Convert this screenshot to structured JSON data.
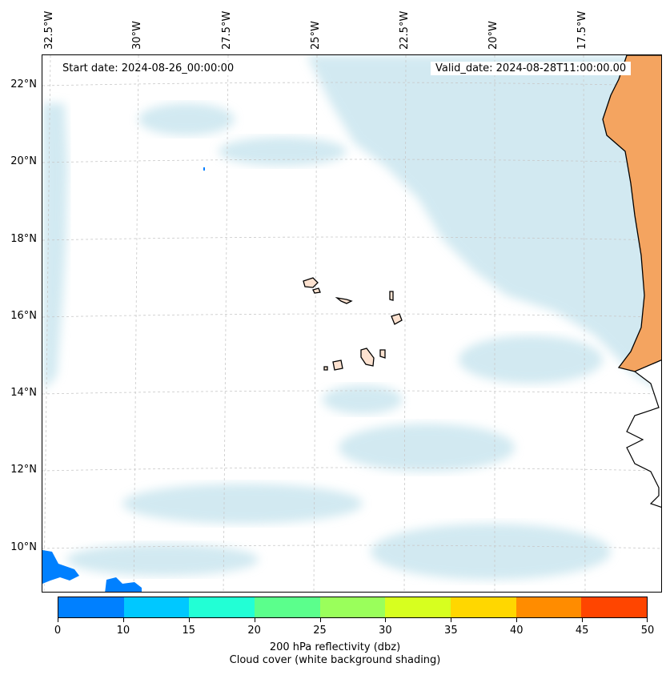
{
  "map": {
    "start_date": "Start date: 2024-08-26_00:00:00",
    "valid_date": "Valid_date: 2024-08-28T11:00:00.00",
    "lon_labels": [
      "32.5°W",
      "30°W",
      "27.5°W",
      "25°W",
      "22.5°W",
      "20°W",
      "17.5°W"
    ],
    "lat_labels": [
      "22°N",
      "20°N",
      "18°N",
      "16°N",
      "14°N",
      "12°N",
      "10°N"
    ],
    "land_color": "#f4a460",
    "cloud_color": "#add8e6",
    "reflectivity_color": "#0080ff"
  },
  "colorbar": {
    "colors": [
      "#0080ff",
      "#00c8ff",
      "#22ffd5",
      "#5bff8c",
      "#9aff5b",
      "#d7ff1f",
      "#ffd700",
      "#ff8c00",
      "#ff4500"
    ],
    "ticks": [
      "0",
      "10",
      "15",
      "20",
      "25",
      "30",
      "35",
      "40",
      "45",
      "50"
    ],
    "label_line1": "200 hPa reflectivity (dbz)",
    "label_line2": "Cloud cover (white background shading)"
  }
}
